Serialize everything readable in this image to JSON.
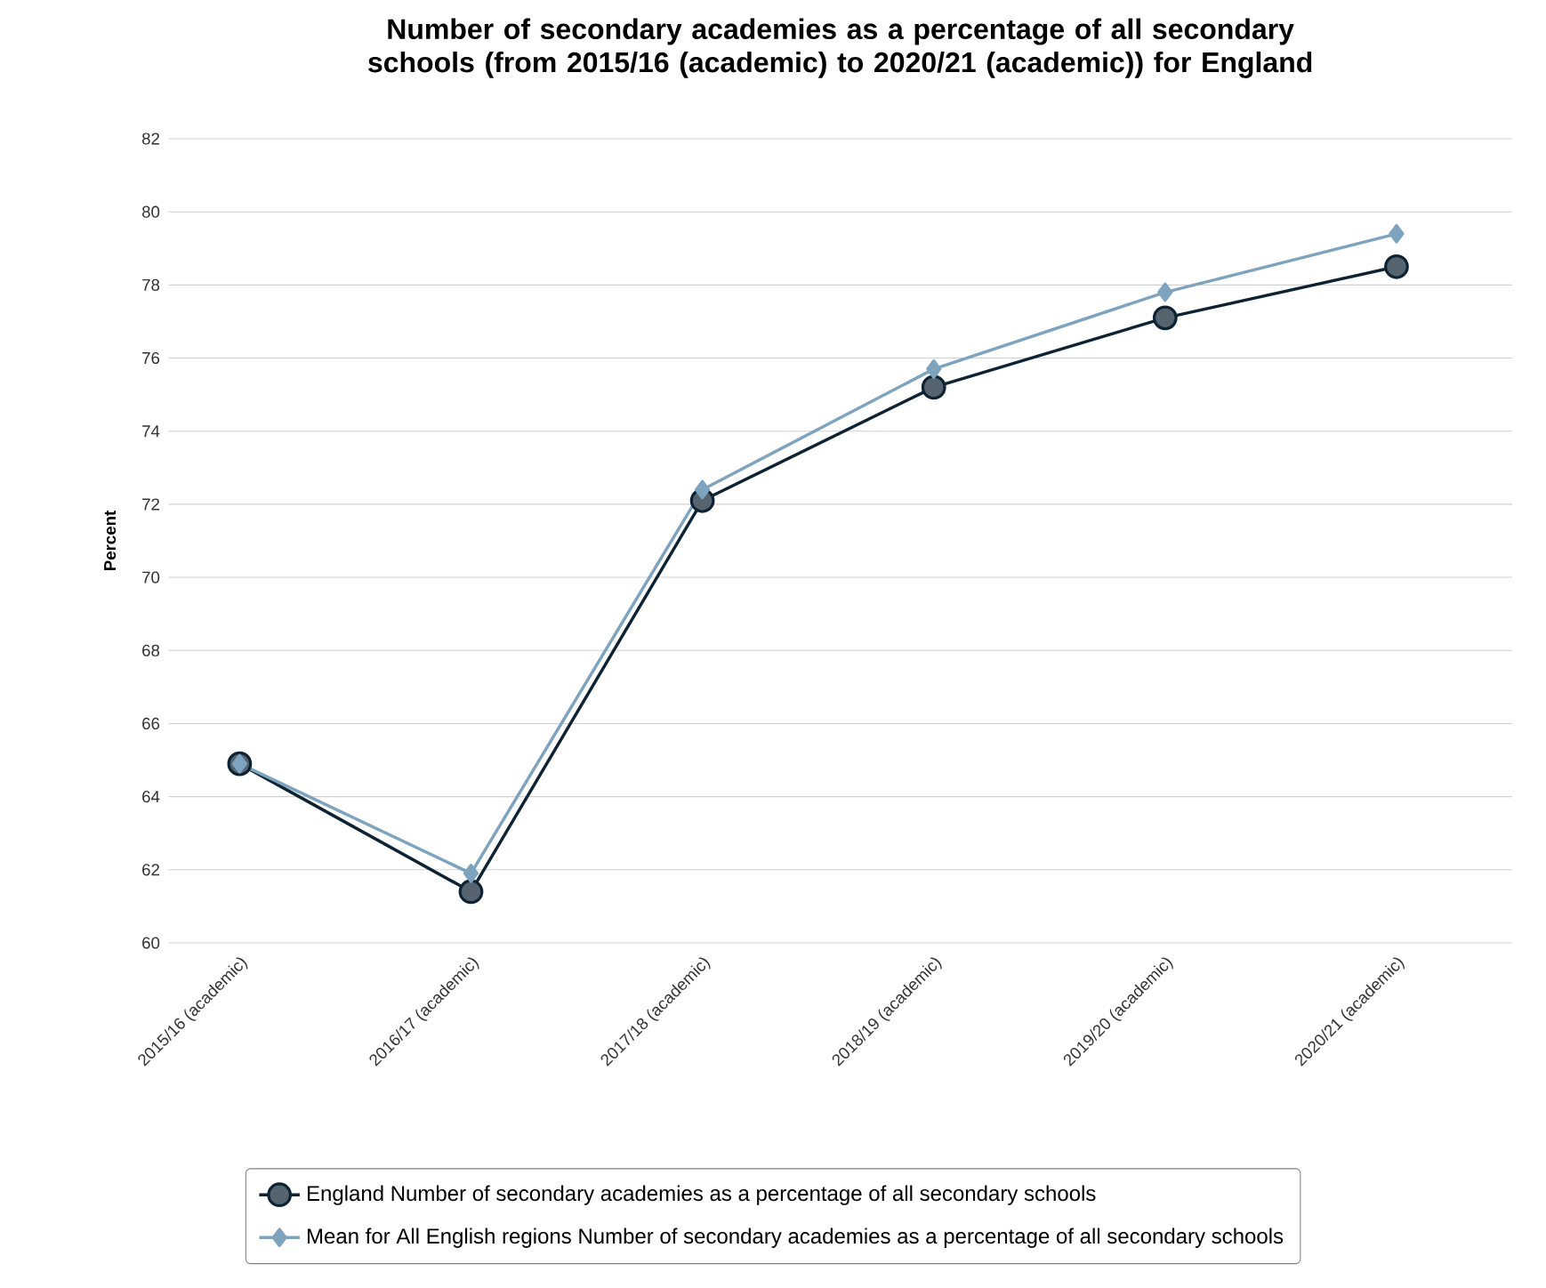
{
  "chart_data": {
    "type": "line",
    "title": "Number of secondary academies as a percentage of all secondary schools (from 2015/16 (academic) to 2020/21 (academic)) for England",
    "ylabel": "Percent",
    "categories": [
      "2015/16 (academic)",
      "2016/17 (academic)",
      "2017/18 (academic)",
      "2018/19 (academic)",
      "2019/20 (academic)",
      "2020/21 (academic)"
    ],
    "series": [
      {
        "name": "England Number of secondary academies as a percentage of all secondary schools",
        "color": "#0d2233",
        "marker": "circle",
        "values": [
          64.9,
          61.4,
          72.1,
          75.2,
          77.1,
          78.5
        ]
      },
      {
        "name": "Mean for All English regions Number of secondary academies as a percentage of all secondary schools",
        "color": "#7ea3bf",
        "marker": "diamond",
        "values": [
          64.9,
          61.9,
          72.4,
          75.7,
          77.8,
          79.4
        ]
      }
    ],
    "ylim": [
      60,
      82
    ],
    "yticks": [
      60,
      62,
      64,
      66,
      68,
      70,
      72,
      74,
      76,
      78,
      80,
      82
    ],
    "grid": "y",
    "legend": "bottom"
  }
}
